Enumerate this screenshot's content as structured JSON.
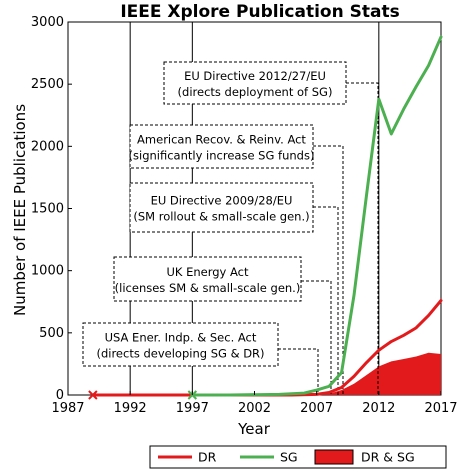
{
  "chart_data": {
    "type": "line",
    "title": "IEEE Xplore Publication Stats",
    "xlabel": "Year",
    "ylabel": "Number of IEEE Publications",
    "xlim": [
      1987,
      2017
    ],
    "ylim": [
      0,
      3000
    ],
    "xticks": [
      1987,
      1992,
      1997,
      2002,
      2007,
      2012,
      2017
    ],
    "yticks": [
      0,
      500,
      1000,
      1500,
      2000,
      2500,
      3000
    ],
    "grid": "vertical lines at 1992, 1997, 2012",
    "legend_position": "bottom",
    "series": [
      {
        "name": "DR",
        "kind": "line",
        "color": "#e31a1c",
        "points": [
          [
            1989,
            0
          ],
          [
            1997,
            0
          ],
          [
            2000,
            0
          ],
          [
            2005,
            0
          ],
          [
            2007,
            5
          ],
          [
            2008,
            20
          ],
          [
            2009,
            60
          ],
          [
            2010,
            150
          ],
          [
            2011,
            260
          ],
          [
            2012,
            360
          ],
          [
            2013,
            430
          ],
          [
            2014,
            480
          ],
          [
            2015,
            540
          ],
          [
            2016,
            640
          ],
          [
            2017,
            760
          ]
        ]
      },
      {
        "name": "SG",
        "kind": "line",
        "color": "#4caf50",
        "points": [
          [
            1997,
            0
          ],
          [
            2000,
            0
          ],
          [
            2004,
            5
          ],
          [
            2006,
            15
          ],
          [
            2007,
            40
          ],
          [
            2008,
            70
          ],
          [
            2009,
            180
          ],
          [
            2010,
            800
          ],
          [
            2011,
            1600
          ],
          [
            2012,
            2380
          ],
          [
            2013,
            2100
          ],
          [
            2014,
            2300
          ],
          [
            2015,
            2480
          ],
          [
            2016,
            2650
          ],
          [
            2017,
            2880
          ]
        ]
      },
      {
        "name": "DR & SG",
        "kind": "area",
        "color": "#e31a1c",
        "points": [
          [
            2007,
            0
          ],
          [
            2008,
            10
          ],
          [
            2009,
            40
          ],
          [
            2010,
            90
          ],
          [
            2011,
            160
          ],
          [
            2012,
            230
          ],
          [
            2013,
            270
          ],
          [
            2014,
            290
          ],
          [
            2015,
            310
          ],
          [
            2016,
            340
          ],
          [
            2017,
            330
          ]
        ]
      }
    ],
    "markers": [
      {
        "series": "DR",
        "year": 1989,
        "value": 0,
        "symbol": "x"
      },
      {
        "series": "SG",
        "year": 1997,
        "value": 0,
        "symbol": "x"
      }
    ],
    "annotations": [
      {
        "line1": "EU Directive 2012/27/EU",
        "line2": "(directs deployment of SG)",
        "year": 2012
      },
      {
        "line1": "American Recov. & Reinv. Act",
        "line2": "(significantly increase SG funds)",
        "year": 2009
      },
      {
        "line1": "EU Directive 2009/28/EU",
        "line2": "(SM rollout & small-scale gen.)",
        "year": 2009
      },
      {
        "line1": "UK Energy Act",
        "line2": "(licenses SM & small-scale gen.)",
        "year": 2008
      },
      {
        "line1": "USA Ener. Indp. & Sec. Act",
        "line2": "(directs developing SG & DR)",
        "year": 2007
      }
    ]
  }
}
